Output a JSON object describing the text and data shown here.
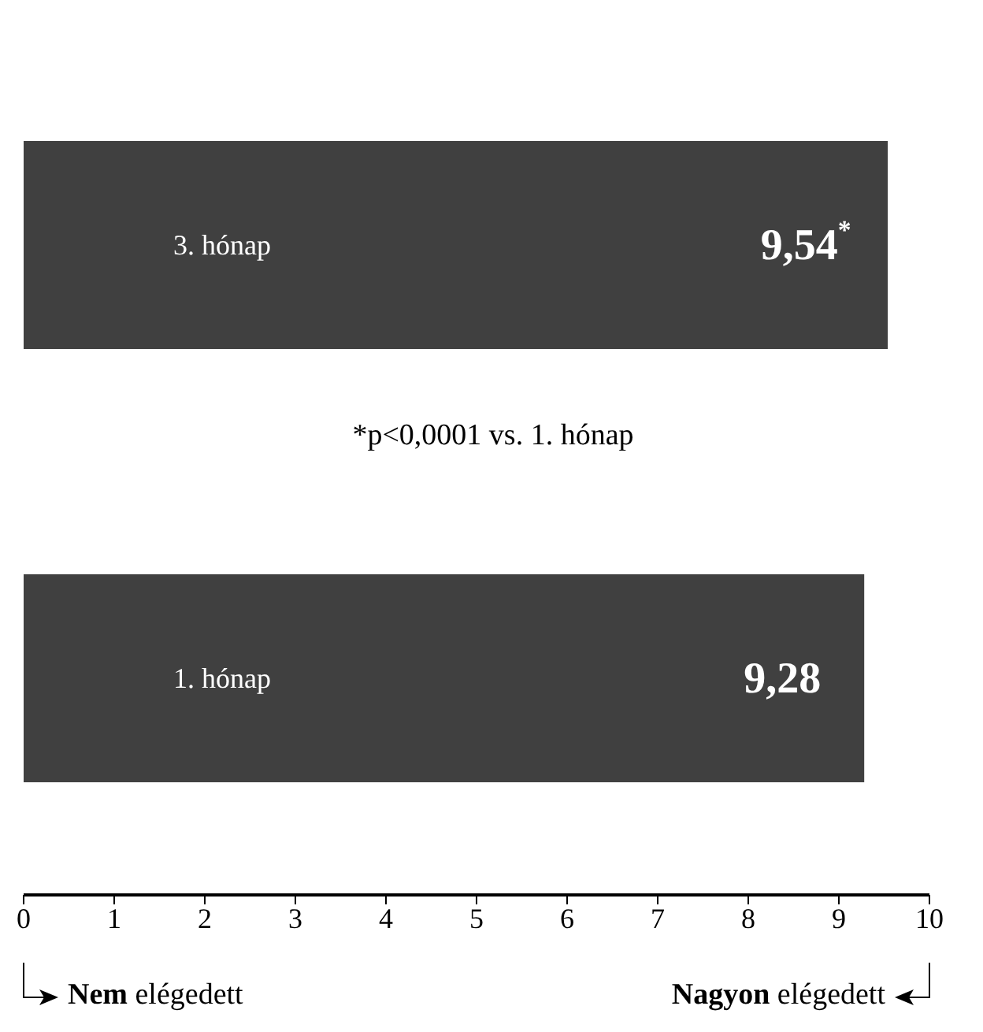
{
  "chart_data": {
    "type": "bar",
    "orientation": "horizontal",
    "categories": [
      "3. hónap",
      "1. hónap"
    ],
    "values": [
      9.54,
      9.28
    ],
    "value_labels": [
      "9,54$^{*}$",
      "9,28"
    ],
    "color": "#404040",
    "xlim": [
      0,
      10
    ],
    "xticks": [
      0,
      1,
      2,
      3,
      4,
      5,
      6,
      7,
      8,
      9,
      10
    ],
    "annotations": [
      "*p<0,0001 vs. 1. hónap",
      "Nem elégedett",
      "Nagyon elégedett"
    ],
    "grid": false,
    "legend": false
  }
}
